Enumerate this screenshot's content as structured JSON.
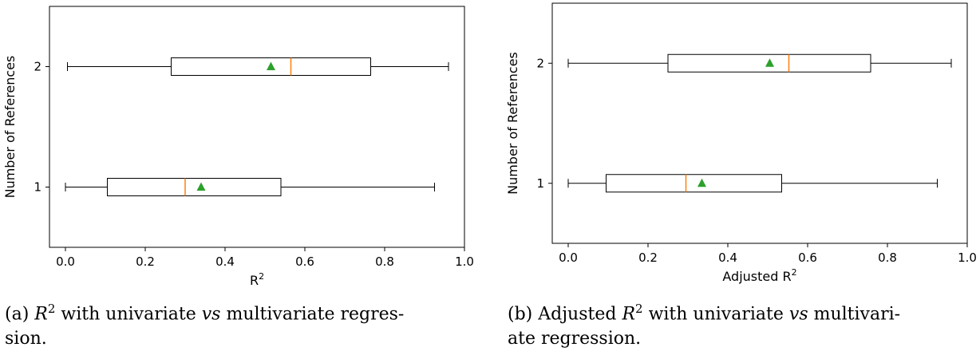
{
  "chart_data": [
    {
      "type": "boxplot",
      "orientation": "horizontal",
      "xlabel": "R",
      "xlabel_sup": "2",
      "ylabel": "Number of References",
      "xlim": [
        -0.04,
        1.0
      ],
      "ylim": [
        0.5,
        2.5
      ],
      "xticks": [
        "0.0",
        "0.2",
        "0.4",
        "0.6",
        "0.8",
        "1.0"
      ],
      "yticks": [
        "1",
        "2"
      ],
      "colors": {
        "median": "#ff7f0e",
        "mean": "#2ca02c",
        "box": "#000000"
      },
      "boxes": [
        {
          "category": "1",
          "whisker_low": 0.0,
          "q1": 0.105,
          "median": 0.3,
          "q3": 0.54,
          "whisker_high": 0.925,
          "mean": 0.34
        },
        {
          "category": "2",
          "whisker_low": 0.005,
          "q1": 0.265,
          "median": 0.565,
          "q3": 0.765,
          "whisker_high": 0.96,
          "mean": 0.515
        }
      ]
    },
    {
      "type": "boxplot",
      "orientation": "horizontal",
      "xlabel": "Adjusted R",
      "xlabel_sup": "2",
      "ylabel": "Number of References",
      "xlim": [
        -0.04,
        1.0
      ],
      "ylim": [
        0.5,
        2.5
      ],
      "xticks": [
        "0.0",
        "0.2",
        "0.4",
        "0.6",
        "0.8",
        "1.0"
      ],
      "yticks": [
        "1",
        "2"
      ],
      "colors": {
        "median": "#ff7f0e",
        "mean": "#2ca02c",
        "box": "#000000"
      },
      "boxes": [
        {
          "category": "1",
          "whisker_low": 0.0,
          "q1": 0.095,
          "median": 0.295,
          "q3": 0.535,
          "whisker_high": 0.925,
          "mean": 0.335
        },
        {
          "category": "2",
          "whisker_low": 0.0,
          "q1": 0.25,
          "median": 0.553,
          "q3": 0.758,
          "whisker_high": 0.96,
          "mean": 0.505
        }
      ]
    }
  ],
  "captions": [
    {
      "label": "(a)",
      "math": "R",
      "sup": "2",
      "pre": "with univariate",
      "vs": "vs",
      "post": "multivariate regres-",
      "line2": "sion."
    },
    {
      "label": "(b) Adjusted",
      "math": "R",
      "sup": "2",
      "pre": "with univariate",
      "vs": "vs",
      "post": "multivari-",
      "line2": "ate regression."
    }
  ]
}
